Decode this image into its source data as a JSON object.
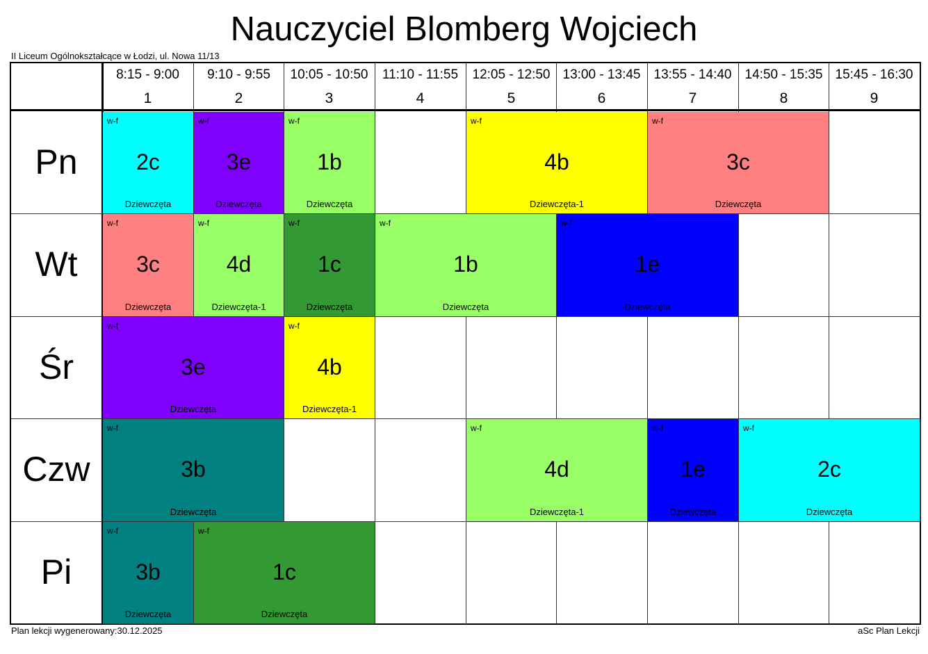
{
  "title": "Nauczyciel Blomberg Wojciech",
  "school": "II Liceum Ogólnokształcące w Łodzi, ul. Nowa 11/13",
  "footer": {
    "generated": "Plan lekcji wygenerowany:30.12.2025",
    "app": "aSc Plan Lekcji"
  },
  "periods": [
    {
      "time": "8:15 - 9:00",
      "num": "1"
    },
    {
      "time": "9:10 - 9:55",
      "num": "2"
    },
    {
      "time": "10:05 - 10:50",
      "num": "3"
    },
    {
      "time": "11:10 - 11:55",
      "num": "4"
    },
    {
      "time": "12:05 - 12:50",
      "num": "5"
    },
    {
      "time": "13:00 - 13:45",
      "num": "6"
    },
    {
      "time": "13:55 - 14:40",
      "num": "7"
    },
    {
      "time": "14:50 - 15:35",
      "num": "8"
    },
    {
      "time": "15:45 - 16:30",
      "num": "9"
    }
  ],
  "days": [
    "Pn",
    "Wt",
    "Śr",
    "Czw",
    "Pi"
  ],
  "lessons": [
    {
      "day": 0,
      "start": 1,
      "span": 1,
      "subject": "w-f",
      "class": "2c",
      "group": "Dziewczęta",
      "color": "#00ffff"
    },
    {
      "day": 0,
      "start": 2,
      "span": 1,
      "subject": "w-f",
      "class": "3e",
      "group": "Dziewczęta",
      "color": "#8000ff"
    },
    {
      "day": 0,
      "start": 3,
      "span": 1,
      "subject": "w-f",
      "class": "1b",
      "group": "Dziewczęta",
      "color": "#99ff66"
    },
    {
      "day": 0,
      "start": 5,
      "span": 2,
      "subject": "w-f",
      "class": "4b",
      "group": "Dziewczęta-1",
      "color": "#ffff00"
    },
    {
      "day": 0,
      "start": 7,
      "span": 2,
      "subject": "w-f",
      "class": "3c",
      "group": "Dziewczęta",
      "color": "#ff8080"
    },
    {
      "day": 1,
      "start": 1,
      "span": 1,
      "subject": "w-f",
      "class": "3c",
      "group": "Dziewczęta",
      "color": "#ff8080"
    },
    {
      "day": 1,
      "start": 2,
      "span": 1,
      "subject": "w-f",
      "class": "4d",
      "group": "Dziewczęta-1",
      "color": "#99ff66"
    },
    {
      "day": 1,
      "start": 3,
      "span": 1,
      "subject": "w-f",
      "class": "1c",
      "group": "Dziewczęta",
      "color": "#339933"
    },
    {
      "day": 1,
      "start": 4,
      "span": 2,
      "subject": "w-f",
      "class": "1b",
      "group": "Dziewczęta",
      "color": "#99ff66"
    },
    {
      "day": 1,
      "start": 6,
      "span": 2,
      "subject": "w-f",
      "class": "1e",
      "group": "Dziewczęta",
      "color": "#0000ff"
    },
    {
      "day": 2,
      "start": 1,
      "span": 2,
      "subject": "w-f",
      "class": "3e",
      "group": "Dziewczęta",
      "color": "#8000ff"
    },
    {
      "day": 2,
      "start": 3,
      "span": 1,
      "subject": "w-f",
      "class": "4b",
      "group": "Dziewczęta-1",
      "color": "#ffff00"
    },
    {
      "day": 3,
      "start": 1,
      "span": 2,
      "subject": "w-f",
      "class": "3b",
      "group": "Dziewczęta",
      "color": "#008080"
    },
    {
      "day": 3,
      "start": 5,
      "span": 2,
      "subject": "w-f",
      "class": "4d",
      "group": "Dziewczęta-1",
      "color": "#99ff66"
    },
    {
      "day": 3,
      "start": 7,
      "span": 1,
      "subject": "w-f",
      "class": "1e",
      "group": "Dziewczęta",
      "color": "#0000ff"
    },
    {
      "day": 3,
      "start": 8,
      "span": 2,
      "subject": "w-f",
      "class": "2c",
      "group": "Dziewczęta",
      "color": "#00ffff"
    },
    {
      "day": 4,
      "start": 1,
      "span": 1,
      "subject": "w-f",
      "class": "3b",
      "group": "Dziewczęta",
      "color": "#008080"
    },
    {
      "day": 4,
      "start": 2,
      "span": 2,
      "subject": "w-f",
      "class": "1c",
      "group": "Dziewczęta",
      "color": "#339933"
    }
  ]
}
